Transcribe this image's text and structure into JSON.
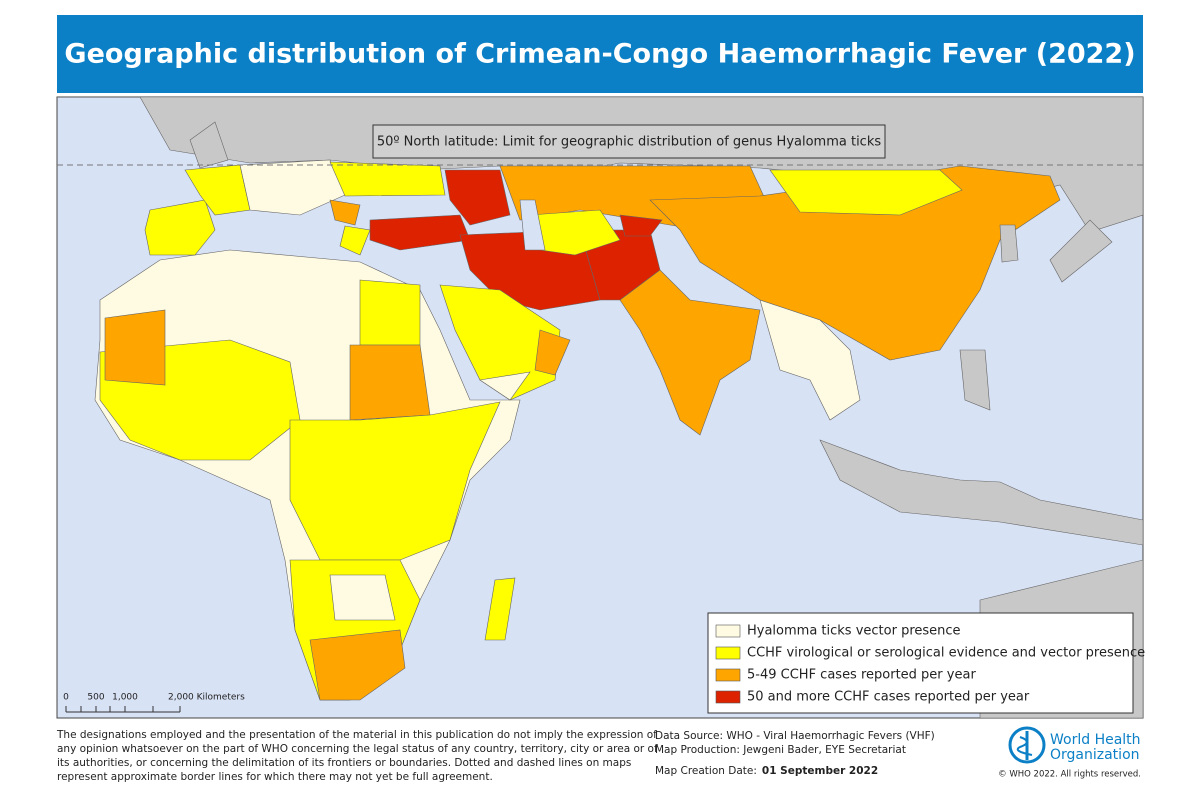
{
  "header": {
    "title": "Geographic distribution of Crimean-Congo Haemorrhagic Fever (2022)"
  },
  "map": {
    "annotation": "50º North latitude: Limit for geographic distribution of genus Hyalomma ticks",
    "legend": [
      {
        "label": "Hyalomma ticks vector presence",
        "color": "#fffbe3"
      },
      {
        "label": "CCHF virological or serological evidence and vector presence",
        "color": "#ffff00"
      },
      {
        "label": "5-49 CCHF cases reported per year",
        "color": "#ffa500"
      },
      {
        "label": "50 and more CCHF cases reported per year",
        "color": "#dd2200"
      }
    ],
    "scale_bar": [
      "0",
      "500",
      "1,000",
      "2,000 Kilometers"
    ]
  },
  "footer": {
    "disclaimer": [
      "The designations employed and the presentation of the material in this publication do not imply the expression of",
      "any opinion whatsoever on the part of WHO concerning the legal status of any country, territory, city or area or of",
      "its authorities, or concerning the delimitation of its frontiers or boundaries. Dotted and dashed lines on maps",
      "represent approximate border lines for which there may not yet be full agreement."
    ],
    "data_source": "Data Source: WHO - Viral Haemorrhagic Fevers (VHF)",
    "map_production": "Map Production: Jewgeni Bader, EYE Secretariat",
    "creation_date_label": "Map Creation Date:",
    "creation_date": "01 September 2022",
    "organization": [
      "World Health",
      "Organization"
    ],
    "copyright": "© WHO 2022. All rights reserved."
  }
}
